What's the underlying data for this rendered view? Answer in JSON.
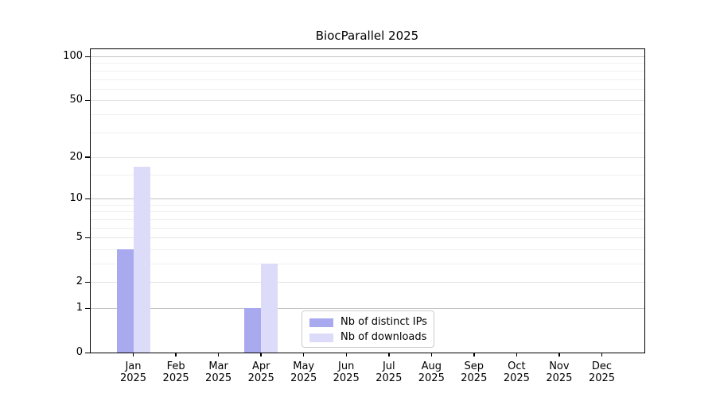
{
  "chart_data": {
    "type": "bar",
    "title": "BiocParallel 2025",
    "year": "2025",
    "categories": [
      "Jan",
      "Feb",
      "Mar",
      "Apr",
      "May",
      "Jun",
      "Jul",
      "Aug",
      "Sep",
      "Oct",
      "Nov",
      "Dec"
    ],
    "series": [
      {
        "name": "Nb of distinct IPs",
        "color": "#a9a9f0",
        "values": [
          4,
          0,
          0,
          1,
          0,
          0,
          0,
          0,
          0,
          0,
          0,
          0
        ]
      },
      {
        "name": "Nb of downloads",
        "color": "#dcdcfa",
        "values": [
          17,
          0,
          0,
          3,
          0,
          0,
          0,
          0,
          0,
          0,
          0,
          0
        ]
      }
    ],
    "yticks": [
      0,
      1,
      2,
      5,
      10,
      20,
      50,
      100
    ],
    "yticks_power": [
      1,
      10,
      100
    ],
    "minor_yticks": [
      3,
      4,
      6,
      7,
      8,
      9,
      15,
      30,
      40,
      60,
      70,
      80,
      90
    ],
    "scale": "log10(1+v)",
    "ylim": [
      0,
      100
    ],
    "grid": true,
    "legend_position": "inside-bottom-center",
    "colors": {
      "grid_major": "#c3c3c3",
      "grid_mid": "#e3e3e3",
      "grid_minor": "#f0f0f0",
      "spine": "#000000",
      "background": "#ffffff",
      "text": "#000000",
      "legend_border": "#cccccc"
    }
  }
}
